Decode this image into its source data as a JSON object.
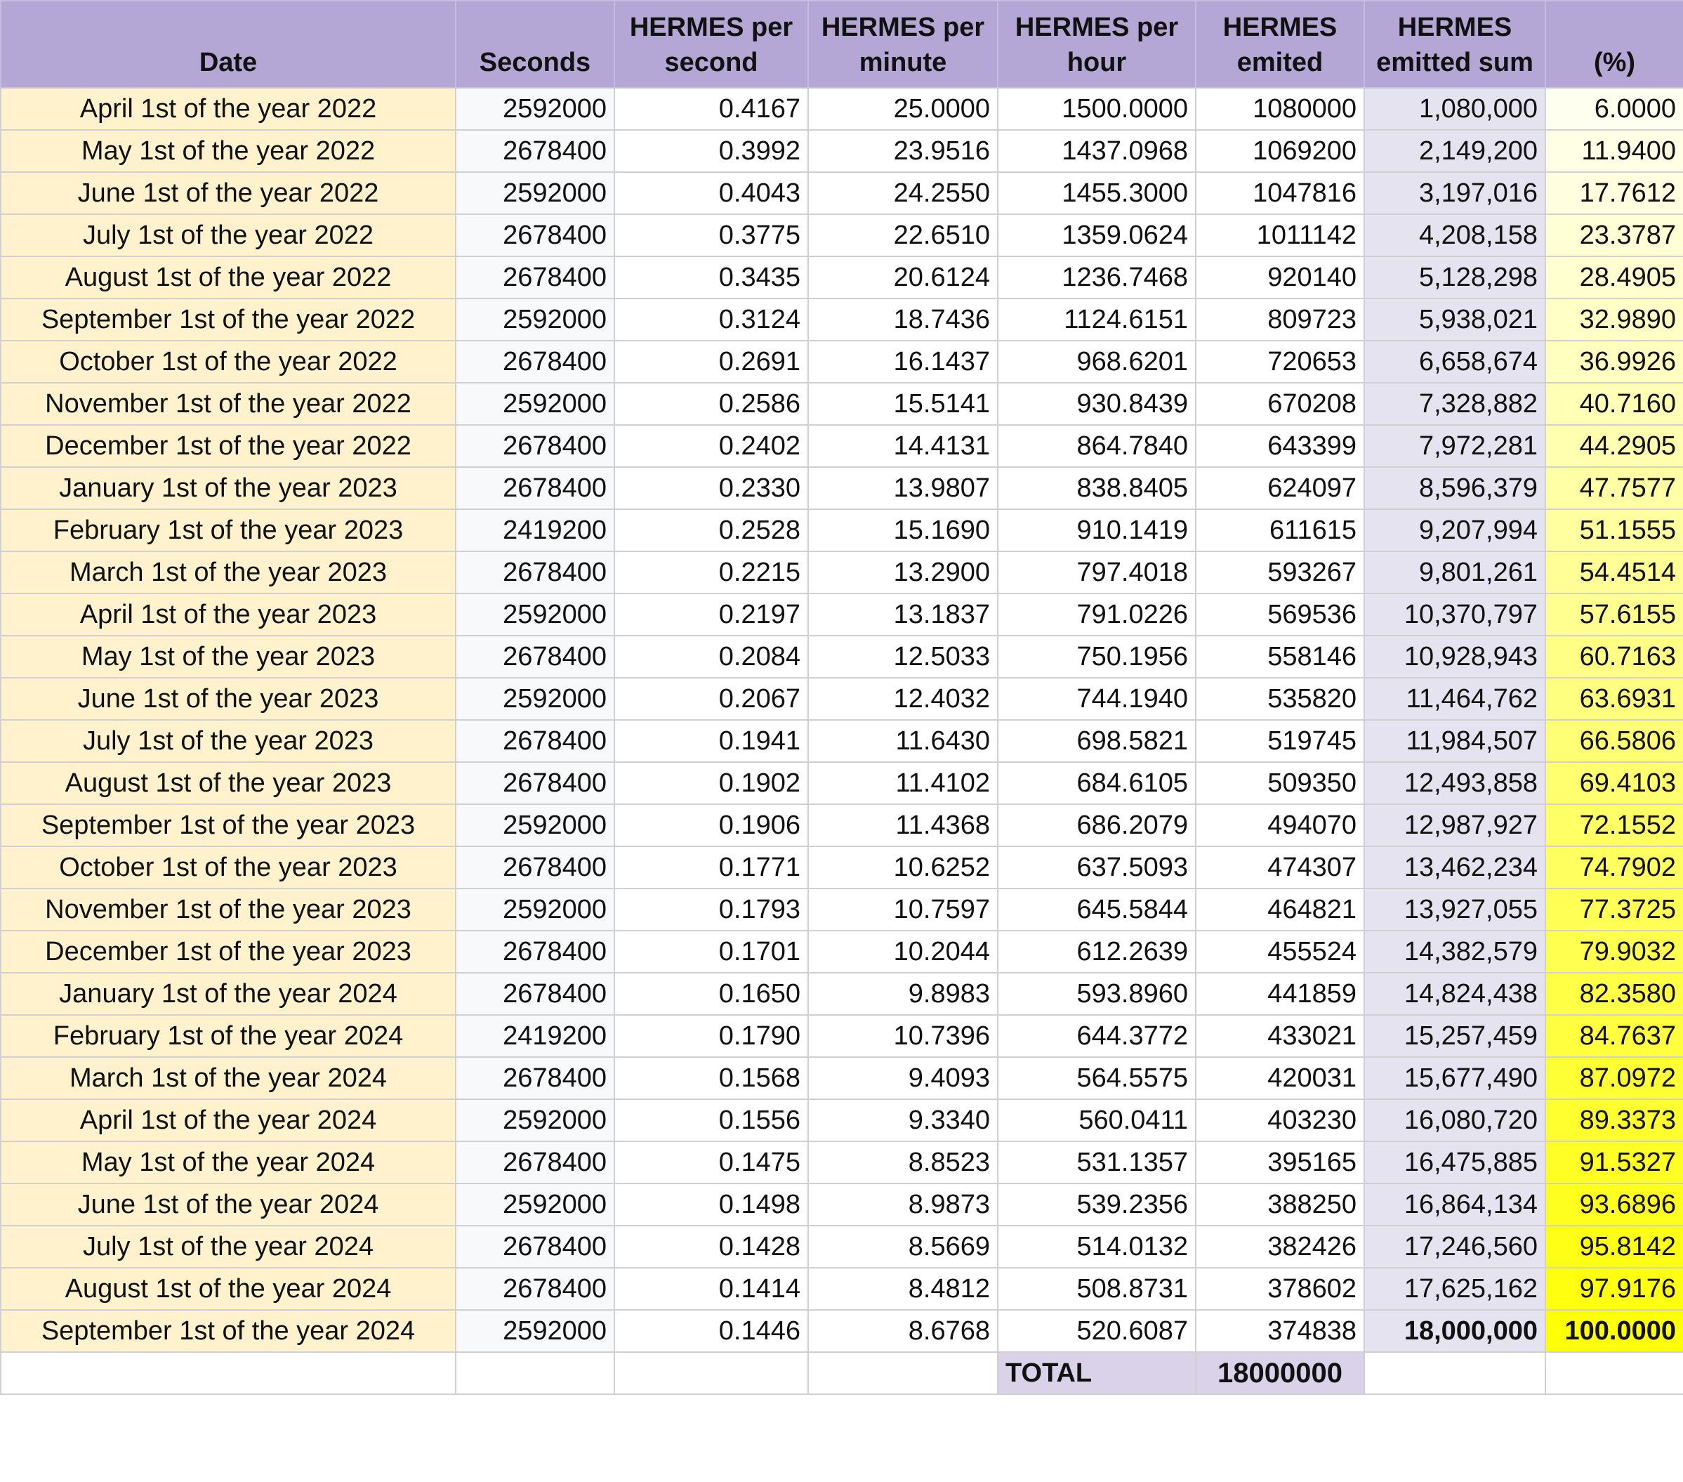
{
  "columns": [
    "Date",
    "Seconds",
    "HERMES per second",
    "HERMES per minute",
    "HERMES per hour",
    "HERMES emited",
    "HERMES emitted sum",
    "(%)"
  ],
  "pct_colors": [
    "#ffffef",
    "#ffffe6",
    "#ffffdf",
    "#ffffd6",
    "#ffffcf",
    "#ffffc6",
    "#ffffbf",
    "#ffffb6",
    "#ffffaf",
    "#ffffa6",
    "#ffff9f",
    "#ffff96",
    "#ffff8f",
    "#ffff86",
    "#ffff7f",
    "#ffff76",
    "#ffff6f",
    "#ffff66",
    "#ffff5f",
    "#ffff56",
    "#ffff4f",
    "#ffff46",
    "#ffff3f",
    "#ffff36",
    "#ffff2f",
    "#ffff26",
    "#ffff1f",
    "#ffff16",
    "#ffff0f",
    "#ffff06"
  ],
  "rows": [
    {
      "date": "April 1st of the year 2022",
      "seconds": "2592000",
      "per_second": "0.4167",
      "per_minute": "25.0000",
      "per_hour": "1500.0000",
      "emitted": "1080000",
      "sum": "1,080,000",
      "pct": "6.0000"
    },
    {
      "date": "May 1st of the year 2022",
      "seconds": "2678400",
      "per_second": "0.3992",
      "per_minute": "23.9516",
      "per_hour": "1437.0968",
      "emitted": "1069200",
      "sum": "2,149,200",
      "pct": "11.9400"
    },
    {
      "date": "June 1st of the year 2022",
      "seconds": "2592000",
      "per_second": "0.4043",
      "per_minute": "24.2550",
      "per_hour": "1455.3000",
      "emitted": "1047816",
      "sum": "3,197,016",
      "pct": "17.7612"
    },
    {
      "date": "July 1st of the year 2022",
      "seconds": "2678400",
      "per_second": "0.3775",
      "per_minute": "22.6510",
      "per_hour": "1359.0624",
      "emitted": "1011142",
      "sum": "4,208,158",
      "pct": "23.3787"
    },
    {
      "date": "August 1st of the year 2022",
      "seconds": "2678400",
      "per_second": "0.3435",
      "per_minute": "20.6124",
      "per_hour": "1236.7468",
      "emitted": "920140",
      "sum": "5,128,298",
      "pct": "28.4905"
    },
    {
      "date": "September 1st of the year 2022",
      "seconds": "2592000",
      "per_second": "0.3124",
      "per_minute": "18.7436",
      "per_hour": "1124.6151",
      "emitted": "809723",
      "sum": "5,938,021",
      "pct": "32.9890"
    },
    {
      "date": "October 1st of the year 2022",
      "seconds": "2678400",
      "per_second": "0.2691",
      "per_minute": "16.1437",
      "per_hour": "968.6201",
      "emitted": "720653",
      "sum": "6,658,674",
      "pct": "36.9926"
    },
    {
      "date": "November 1st of the year 2022",
      "seconds": "2592000",
      "per_second": "0.2586",
      "per_minute": "15.5141",
      "per_hour": "930.8439",
      "emitted": "670208",
      "sum": "7,328,882",
      "pct": "40.7160"
    },
    {
      "date": "December 1st of the year 2022",
      "seconds": "2678400",
      "per_second": "0.2402",
      "per_minute": "14.4131",
      "per_hour": "864.7840",
      "emitted": "643399",
      "sum": "7,972,281",
      "pct": "44.2905"
    },
    {
      "date": "January 1st of the year 2023",
      "seconds": "2678400",
      "per_second": "0.2330",
      "per_minute": "13.9807",
      "per_hour": "838.8405",
      "emitted": "624097",
      "sum": "8,596,379",
      "pct": "47.7577"
    },
    {
      "date": "February 1st of the year 2023",
      "seconds": "2419200",
      "per_second": "0.2528",
      "per_minute": "15.1690",
      "per_hour": "910.1419",
      "emitted": "611615",
      "sum": "9,207,994",
      "pct": "51.1555"
    },
    {
      "date": "March 1st of the year 2023",
      "seconds": "2678400",
      "per_second": "0.2215",
      "per_minute": "13.2900",
      "per_hour": "797.4018",
      "emitted": "593267",
      "sum": "9,801,261",
      "pct": "54.4514"
    },
    {
      "date": "April 1st of the year 2023",
      "seconds": "2592000",
      "per_second": "0.2197",
      "per_minute": "13.1837",
      "per_hour": "791.0226",
      "emitted": "569536",
      "sum": "10,370,797",
      "pct": "57.6155"
    },
    {
      "date": "May 1st of the year 2023",
      "seconds": "2678400",
      "per_second": "0.2084",
      "per_minute": "12.5033",
      "per_hour": "750.1956",
      "emitted": "558146",
      "sum": "10,928,943",
      "pct": "60.7163"
    },
    {
      "date": "June 1st of the year 2023",
      "seconds": "2592000",
      "per_second": "0.2067",
      "per_minute": "12.4032",
      "per_hour": "744.1940",
      "emitted": "535820",
      "sum": "11,464,762",
      "pct": "63.6931"
    },
    {
      "date": "July 1st of the year 2023",
      "seconds": "2678400",
      "per_second": "0.1941",
      "per_minute": "11.6430",
      "per_hour": "698.5821",
      "emitted": "519745",
      "sum": "11,984,507",
      "pct": "66.5806"
    },
    {
      "date": "August 1st of the year 2023",
      "seconds": "2678400",
      "per_second": "0.1902",
      "per_minute": "11.4102",
      "per_hour": "684.6105",
      "emitted": "509350",
      "sum": "12,493,858",
      "pct": "69.4103"
    },
    {
      "date": "September 1st of the year 2023",
      "seconds": "2592000",
      "per_second": "0.1906",
      "per_minute": "11.4368",
      "per_hour": "686.2079",
      "emitted": "494070",
      "sum": "12,987,927",
      "pct": "72.1552"
    },
    {
      "date": "October 1st of the year 2023",
      "seconds": "2678400",
      "per_second": "0.1771",
      "per_minute": "10.6252",
      "per_hour": "637.5093",
      "emitted": "474307",
      "sum": "13,462,234",
      "pct": "74.7902"
    },
    {
      "date": "November 1st of the year 2023",
      "seconds": "2592000",
      "per_second": "0.1793",
      "per_minute": "10.7597",
      "per_hour": "645.5844",
      "emitted": "464821",
      "sum": "13,927,055",
      "pct": "77.3725"
    },
    {
      "date": "December 1st of the year 2023",
      "seconds": "2678400",
      "per_second": "0.1701",
      "per_minute": "10.2044",
      "per_hour": "612.2639",
      "emitted": "455524",
      "sum": "14,382,579",
      "pct": "79.9032"
    },
    {
      "date": "January 1st of the year 2024",
      "seconds": "2678400",
      "per_second": "0.1650",
      "per_minute": "9.8983",
      "per_hour": "593.8960",
      "emitted": "441859",
      "sum": "14,824,438",
      "pct": "82.3580"
    },
    {
      "date": "February 1st of the year 2024",
      "seconds": "2419200",
      "per_second": "0.1790",
      "per_minute": "10.7396",
      "per_hour": "644.3772",
      "emitted": "433021",
      "sum": "15,257,459",
      "pct": "84.7637"
    },
    {
      "date": "March 1st of the year 2024",
      "seconds": "2678400",
      "per_second": "0.1568",
      "per_minute": "9.4093",
      "per_hour": "564.5575",
      "emitted": "420031",
      "sum": "15,677,490",
      "pct": "87.0972"
    },
    {
      "date": "April 1st of the year 2024",
      "seconds": "2592000",
      "per_second": "0.1556",
      "per_minute": "9.3340",
      "per_hour": "560.0411",
      "emitted": "403230",
      "sum": "16,080,720",
      "pct": "89.3373"
    },
    {
      "date": "May 1st of the year 2024",
      "seconds": "2678400",
      "per_second": "0.1475",
      "per_minute": "8.8523",
      "per_hour": "531.1357",
      "emitted": "395165",
      "sum": "16,475,885",
      "pct": "91.5327"
    },
    {
      "date": "June 1st of the year 2024",
      "seconds": "2592000",
      "per_second": "0.1498",
      "per_minute": "8.9873",
      "per_hour": "539.2356",
      "emitted": "388250",
      "sum": "16,864,134",
      "pct": "93.6896"
    },
    {
      "date": "July 1st of the year 2024",
      "seconds": "2678400",
      "per_second": "0.1428",
      "per_minute": "8.5669",
      "per_hour": "514.0132",
      "emitted": "382426",
      "sum": "17,246,560",
      "pct": "95.8142"
    },
    {
      "date": "August 1st of the year 2024",
      "seconds": "2678400",
      "per_second": "0.1414",
      "per_minute": "8.4812",
      "per_hour": "508.8731",
      "emitted": "378602",
      "sum": "17,625,162",
      "pct": "97.9176"
    },
    {
      "date": "September 1st of the year 2024",
      "seconds": "2592000",
      "per_second": "0.1446",
      "per_minute": "8.6768",
      "per_hour": "520.6087",
      "emitted": "374838",
      "sum": "18,000,000",
      "pct": "100.0000"
    }
  ],
  "total": {
    "label": "TOTAL",
    "value": "18000000"
  }
}
